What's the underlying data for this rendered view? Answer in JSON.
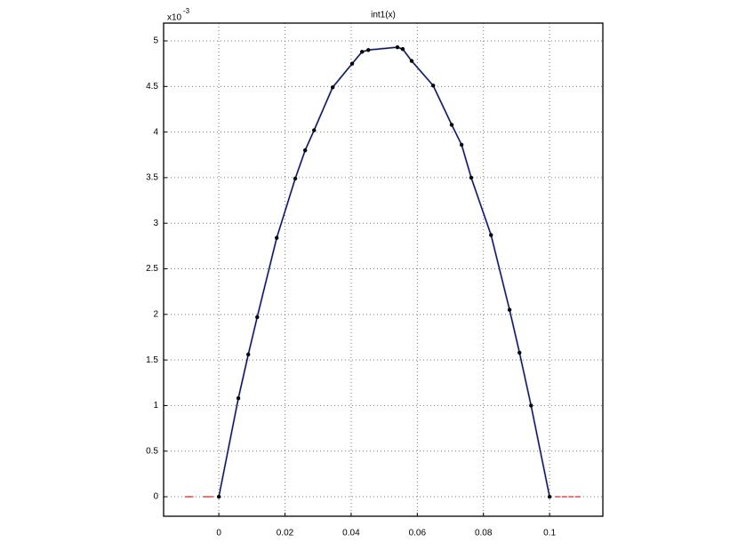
{
  "chart_data": {
    "type": "scatter",
    "title": "int1(x)",
    "y_multiplier": {
      "base": "x10",
      "exponent": "-3"
    },
    "xlim": [
      -0.0167,
      0.1161
    ],
    "ylim": [
      -0.214,
      5.195
    ],
    "xticks": [
      0,
      0.02,
      0.04,
      0.06,
      0.08,
      0.1
    ],
    "yticks": [
      0,
      0.5,
      1,
      1.5,
      2,
      2.5,
      3,
      3.5,
      4,
      4.5,
      5
    ],
    "grid": true,
    "series": [
      {
        "color": "#000000",
        "line_color": "#5a68e0",
        "marker": "dot",
        "x": [
          0,
          0.0059,
          0.0089,
          0.0116,
          0.0175,
          0.0231,
          0.0261,
          0.0288,
          0.0344,
          0.0403,
          0.0433,
          0.0452,
          0.054,
          0.0556,
          0.0583,
          0.0648,
          0.0704,
          0.0734,
          0.0763,
          0.0823,
          0.0879,
          0.0909,
          0.0944,
          0.1
        ],
        "values": [
          0,
          1.08,
          1.56,
          1.97,
          2.84,
          3.49,
          3.8,
          4.02,
          4.49,
          4.75,
          4.88,
          4.9,
          4.93,
          4.91,
          4.78,
          4.51,
          4.08,
          3.86,
          3.5,
          2.87,
          2.05,
          1.58,
          1.0,
          0
        ]
      },
      {
        "color": "#d02020",
        "marker": "dash",
        "x": [
          -0.0095,
          -0.0085,
          -0.004,
          -0.0025,
          0.1025,
          0.1045,
          0.1065,
          0.1085
        ],
        "values": [
          0,
          0,
          0,
          0,
          0,
          0,
          0,
          0
        ]
      }
    ]
  }
}
